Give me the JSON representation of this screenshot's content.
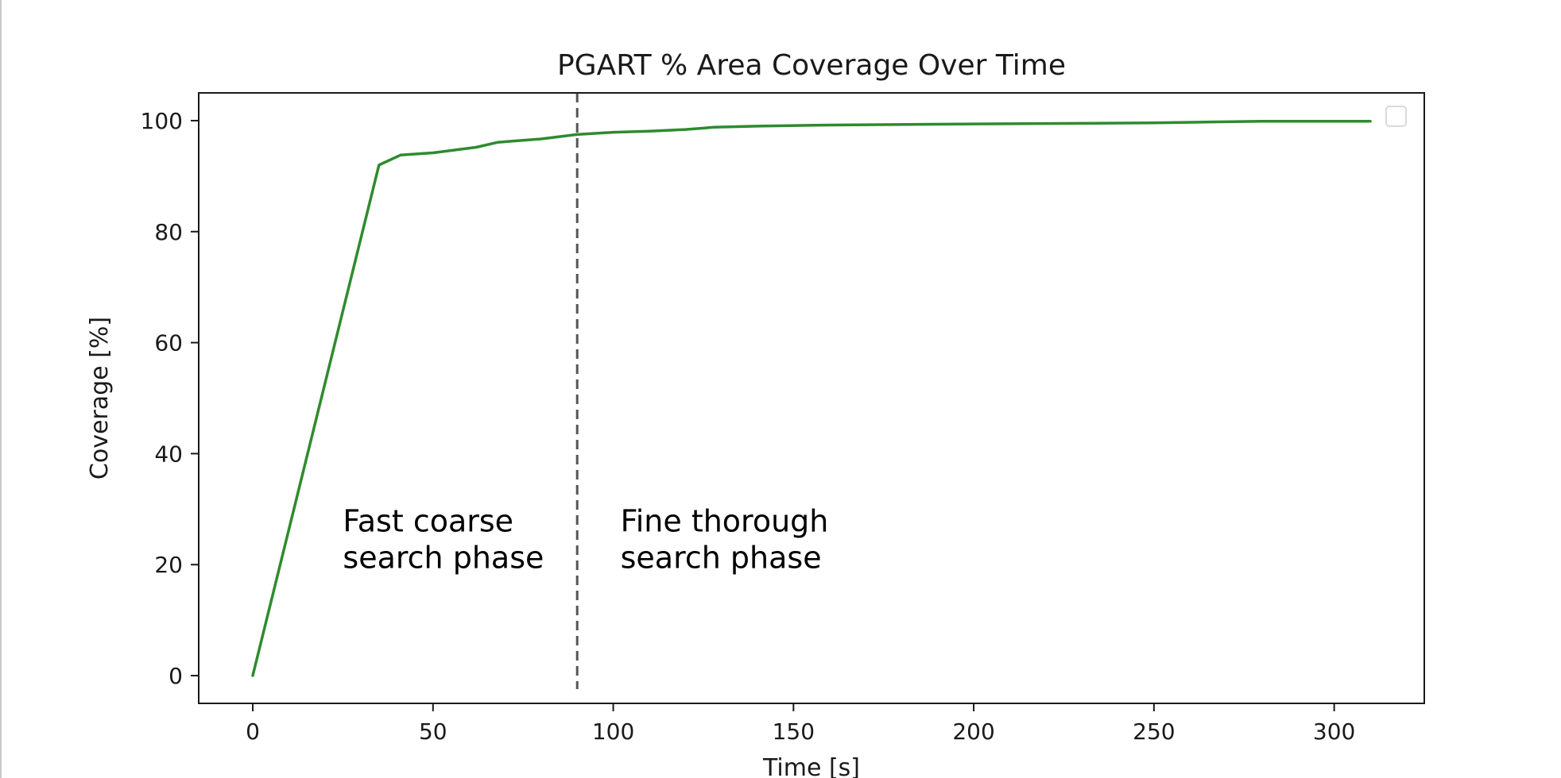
{
  "chart_data": {
    "type": "line",
    "title": "PGART % Area Coverage Over Time",
    "xlabel": "Time [s]",
    "ylabel": "Coverage [%]",
    "xlim": [
      -15,
      325
    ],
    "ylim": [
      -5,
      105
    ],
    "x_ticks": [
      0,
      50,
      100,
      150,
      200,
      250,
      300
    ],
    "y_ticks": [
      0,
      20,
      40,
      60,
      80,
      100
    ],
    "grid": false,
    "legend": "top-right (empty)",
    "colors": {
      "series": "#2e8b2e",
      "phase_line": "#555555",
      "axes": "#1a1a1a"
    },
    "series": [
      {
        "x": [
          0,
          35,
          41,
          50,
          62,
          68,
          80,
          90,
          100,
          110,
          120,
          128,
          140,
          160,
          200,
          250,
          280,
          310
        ],
        "y": [
          0,
          92,
          93.8,
          94.2,
          95.2,
          96.1,
          96.7,
          97.5,
          97.9,
          98.1,
          98.4,
          98.8,
          99.0,
          99.2,
          99.4,
          99.6,
          99.9,
          99.9
        ]
      }
    ],
    "phase_divider_x": 90,
    "annotations": [
      {
        "lines": [
          "Fast coarse",
          "search phase"
        ],
        "x": 25,
        "y": 26
      },
      {
        "lines": [
          "Fine thorough",
          "search phase"
        ],
        "x": 102,
        "y": 26
      }
    ]
  }
}
